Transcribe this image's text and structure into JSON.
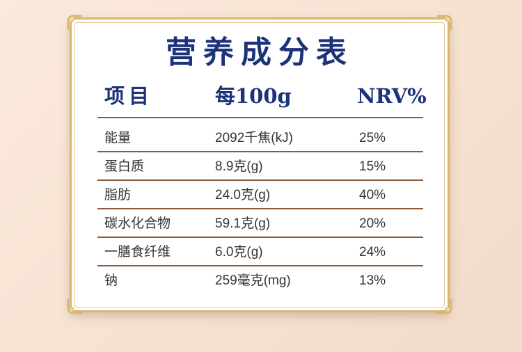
{
  "title": "营养成分表",
  "headers": {
    "item": "项目",
    "per100g": "每100g",
    "nrv": "NRV%"
  },
  "rows": [
    {
      "name": "能量",
      "value": "2092千焦(kJ)",
      "nrv": "25%"
    },
    {
      "name": "蛋白质",
      "value": "8.9克(g)",
      "nrv": "15%"
    },
    {
      "name": "脂肪",
      "value": "24.0克(g)",
      "nrv": "40%"
    },
    {
      "name": "碳水化合物",
      "value": "59.1克(g)",
      "nrv": "20%"
    },
    {
      "name": "一膳食纤维",
      "value": "6.0克(g)",
      "nrv": "24%"
    },
    {
      "name": "钠",
      "value": "259毫克(mg)",
      "nrv": "13%"
    }
  ],
  "colors": {
    "title": "#1c3279",
    "frame_gold": "#d9b66f",
    "rule_brown": "#8a5a3a",
    "text": "#333333"
  }
}
